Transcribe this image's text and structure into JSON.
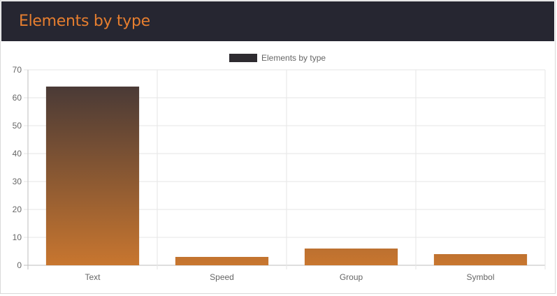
{
  "card": {
    "title": "Elements by type"
  },
  "chart_data": {
    "type": "bar",
    "categories": [
      "Text",
      "Speed",
      "Group",
      "Symbol"
    ],
    "series": [
      {
        "name": "Elements by type",
        "values": [
          64,
          3,
          6,
          4
        ]
      }
    ],
    "title": "",
    "xlabel": "",
    "ylabel": "",
    "ylim": [
      0,
      70
    ],
    "yticks": [
      0,
      10,
      20,
      30,
      40,
      50,
      60,
      70
    ],
    "grid": true,
    "legend": "top-center",
    "colors": {
      "bar_top": "#4a3a36",
      "bar_bottom": "#c8762f",
      "legend_swatch": "#2e2b30",
      "grid": "#e5e5e5",
      "header_bg": "#262631",
      "title": "#e67e2f"
    }
  }
}
